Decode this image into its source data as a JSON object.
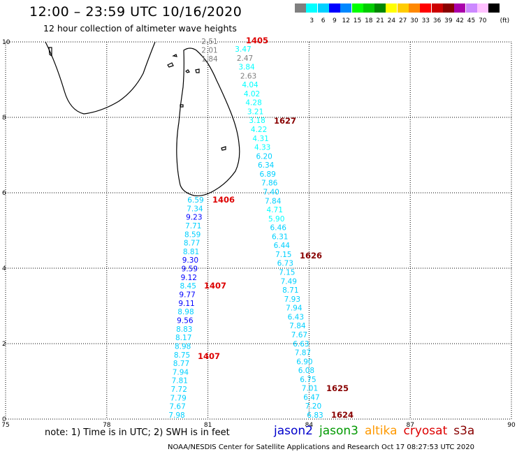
{
  "header": {
    "title": "12:00 – 23:59 UTC 10/16/2020",
    "subtitle": "12 hour collection of altimeter wave heights"
  },
  "scale": {
    "unit": "(ft)",
    "bins": [
      {
        "label": "",
        "color": "#7f7f7f"
      },
      {
        "label": "3",
        "color": "#00ffff"
      },
      {
        "label": "6",
        "color": "#00d0ff"
      },
      {
        "label": "9",
        "color": "#0000ff"
      },
      {
        "label": "12",
        "color": "#0088ff"
      },
      {
        "label": "15",
        "color": "#00ff00"
      },
      {
        "label": "18",
        "color": "#00cc00"
      },
      {
        "label": "21",
        "color": "#008800"
      },
      {
        "label": "24",
        "color": "#ffff00"
      },
      {
        "label": "27",
        "color": "#ffcc00"
      },
      {
        "label": "30",
        "color": "#ff8800"
      },
      {
        "label": "33",
        "color": "#ff0000"
      },
      {
        "label": "36",
        "color": "#cc0000"
      },
      {
        "label": "39",
        "color": "#880000"
      },
      {
        "label": "42",
        "color": "#aa00aa"
      },
      {
        "label": "45",
        "color": "#cc88ff"
      },
      {
        "label": "70",
        "color": "#ffc0ff"
      },
      {
        "label": "",
        "color": "#000000"
      }
    ]
  },
  "map": {
    "lon_range": [
      75,
      90
    ],
    "lat_range": [
      0,
      10
    ],
    "x_ticks": [
      "75",
      "78",
      "81",
      "84",
      "87",
      "90"
    ],
    "y_ticks": [
      "0",
      "2",
      "4",
      "6",
      "8",
      "10"
    ],
    "grid": "dotted",
    "landmass": "Sri Lanka and southern tip of India (coastline outline)"
  },
  "tracks": [
    {
      "id": "1405",
      "satellite": "cryosat",
      "label_color": "#dd0000",
      "values": [
        "2.51",
        "2.01",
        "1.84",
        "3.47",
        "2.47",
        "3.84",
        "2.63",
        "4.04",
        "4.02",
        "4.28",
        "3.21",
        "3.18",
        "4.22",
        "4.31",
        "4.33",
        "6.20",
        "6.34",
        "6.89",
        "7.86",
        "7.40",
        "7.84",
        "4.71",
        "5.90",
        "6.46",
        "6.31",
        "6.44",
        "7.15",
        "6.73",
        "7.15",
        "7.49",
        "8.71",
        "7.93",
        "7.94",
        "6.43",
        "7.84",
        "7.67",
        "6.63",
        "7.87",
        "6.90",
        "6.08",
        "6.75",
        "7.01",
        "6.47",
        "7.20",
        "6.83"
      ]
    },
    {
      "id": "1627",
      "satellite": "s3a",
      "label_color": "#880000"
    },
    {
      "id": "1406",
      "satellite": "cryosat",
      "label_color": "#dd0000",
      "values": [
        "6.59",
        "7.34",
        "9.23",
        "7.71",
        "8.59",
        "8.77",
        "8.81",
        "9.30",
        "9.59",
        "9.12",
        "8.45",
        "9.77",
        "9.11",
        "8.98",
        "9.56",
        "8.83",
        "8.17",
        "8.98",
        "8.75",
        "8.77",
        "7.94",
        "7.81",
        "7.72",
        "7.79",
        "7.67",
        "7.98"
      ]
    },
    {
      "id": "1626",
      "satellite": "s3a",
      "label_color": "#880000"
    },
    {
      "id": "1407",
      "satellite": "cryosat",
      "label_color": "#dd0000"
    },
    {
      "id": "1407",
      "satellite": "cryosat",
      "label_color": "#dd0000"
    },
    {
      "id": "1625",
      "satellite": "s3a",
      "label_color": "#880000"
    },
    {
      "id": "1624",
      "satellite": "s3a",
      "label_color": "#880000"
    }
  ],
  "footer": {
    "note": "note: 1) Time is in UTC; 2) SWH is in feet",
    "satellites": [
      {
        "name": "jason2",
        "color": "#0000cc"
      },
      {
        "name": "jason3",
        "color": "#009900"
      },
      {
        "name": "altika",
        "color": "#ff9900"
      },
      {
        "name": "cryosat",
        "color": "#dd0000"
      },
      {
        "name": "s3a",
        "color": "#880000"
      }
    ],
    "credit": "NOAA/NESDIS Center for Satellite Applications and Research   Oct 17 08:27:53 UTC 2020"
  }
}
